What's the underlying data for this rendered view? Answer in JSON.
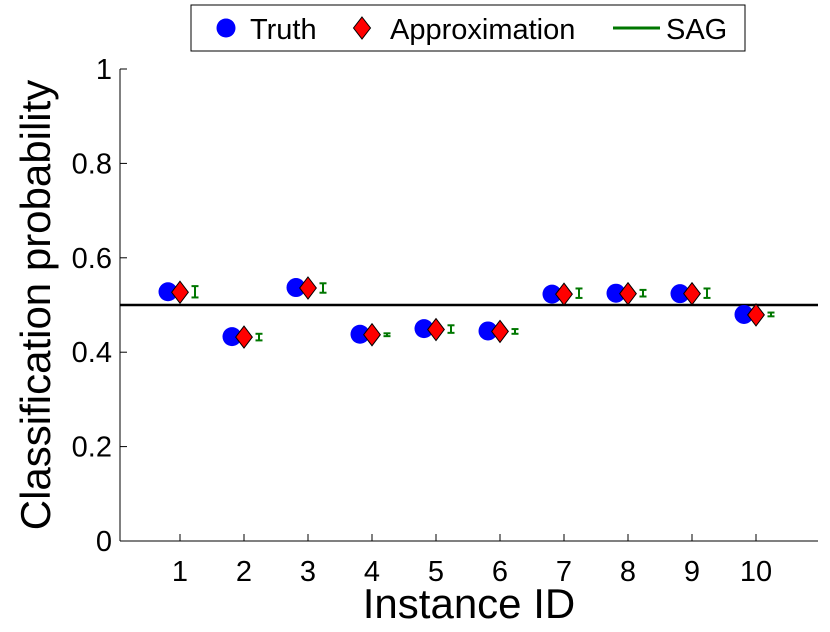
{
  "chart_data": {
    "type": "scatter",
    "xlabel": "Instance ID",
    "ylabel": "Classification probability",
    "categories": [
      "1",
      "2",
      "3",
      "4",
      "5",
      "6",
      "7",
      "8",
      "9",
      "10"
    ],
    "ylim": [
      0,
      1
    ],
    "yticks": [
      "0",
      "0.2",
      "0.4",
      "0.6",
      "0.8",
      "1"
    ],
    "reference_line": 0.5,
    "series": [
      {
        "name": "Truth",
        "marker": "circle",
        "color": "#0000ff",
        "values": [
          0.528,
          0.433,
          0.537,
          0.438,
          0.45,
          0.445,
          0.523,
          0.525,
          0.524,
          0.48
        ]
      },
      {
        "name": "Approximation",
        "marker": "diamond",
        "color": "#ff0000",
        "values": [
          0.527,
          0.432,
          0.536,
          0.437,
          0.448,
          0.444,
          0.523,
          0.524,
          0.524,
          0.479
        ]
      },
      {
        "name": "SAG",
        "marker": "errorbar",
        "color": "#007700",
        "values": [
          0.528,
          0.432,
          0.536,
          0.437,
          0.449,
          0.444,
          0.525,
          0.525,
          0.525,
          0.48
        ],
        "errors": [
          0.012,
          0.007,
          0.01,
          0.003,
          0.008,
          0.005,
          0.01,
          0.007,
          0.01,
          0.004
        ]
      }
    ],
    "legend": {
      "position": "top-center",
      "labels": [
        "Truth",
        "Approximation",
        "SAG"
      ]
    },
    "grid": false
  }
}
